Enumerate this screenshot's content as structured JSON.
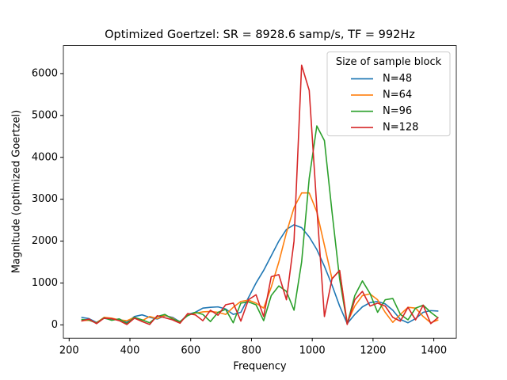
{
  "chart_data": {
    "type": "line",
    "title": "Optimized Goertzel: SR = 8928.6 samp/s, TF = 992Hz",
    "x_label": "Frequency",
    "y_label": "Magnitude (optimized Goertzel)",
    "legend_title": "Size of sample block",
    "legend": "upper right",
    "x": [
      240,
      265,
      290,
      315,
      340,
      365,
      390,
      415,
      440,
      465,
      490,
      515,
      540,
      565,
      590,
      615,
      640,
      665,
      690,
      715,
      740,
      765,
      790,
      815,
      840,
      865,
      890,
      915,
      940,
      965,
      990,
      1015,
      1040,
      1065,
      1090,
      1115,
      1140,
      1165,
      1190,
      1215,
      1240,
      1265,
      1290,
      1315,
      1340,
      1365,
      1390,
      1415
    ],
    "series": [
      {
        "name": "N=48",
        "color": "#1f77b4",
        "values": [
          180,
          150,
          60,
          160,
          120,
          140,
          60,
          200,
          240,
          180,
          140,
          220,
          180,
          70,
          250,
          300,
          400,
          420,
          430,
          380,
          250,
          300,
          650,
          1000,
          1300,
          1650,
          2000,
          2280,
          2390,
          2320,
          2100,
          1800,
          1400,
          950,
          450,
          30,
          250,
          430,
          530,
          560,
          500,
          350,
          130,
          50,
          150,
          300,
          340,
          330
        ]
      },
      {
        "name": "N=64",
        "color": "#ff7f0e",
        "values": [
          100,
          110,
          50,
          180,
          160,
          120,
          100,
          180,
          100,
          200,
          150,
          230,
          160,
          60,
          230,
          280,
          310,
          320,
          300,
          250,
          420,
          560,
          590,
          520,
          400,
          900,
          1500,
          2200,
          2800,
          3150,
          3150,
          2700,
          1900,
          1100,
          1300,
          50,
          450,
          700,
          740,
          600,
          300,
          60,
          250,
          420,
          400,
          200,
          50,
          120
        ]
      },
      {
        "name": "N=96",
        "color": "#2ca02c",
        "values": [
          130,
          120,
          40,
          170,
          110,
          140,
          30,
          180,
          120,
          50,
          200,
          250,
          140,
          80,
          220,
          300,
          250,
          80,
          300,
          370,
          50,
          520,
          550,
          480,
          100,
          700,
          930,
          800,
          350,
          1500,
          3500,
          4750,
          4400,
          2700,
          1100,
          20,
          700,
          1050,
          750,
          300,
          600,
          630,
          250,
          120,
          400,
          470,
          300,
          160
        ]
      },
      {
        "name": "N=128",
        "color": "#d62728",
        "values": [
          90,
          140,
          30,
          160,
          150,
          100,
          10,
          160,
          80,
          10,
          220,
          170,
          120,
          40,
          270,
          240,
          100,
          350,
          230,
          480,
          520,
          90,
          600,
          720,
          200,
          1150,
          1200,
          600,
          2000,
          6200,
          5600,
          2800,
          200,
          1100,
          1300,
          10,
          600,
          800,
          450,
          520,
          450,
          180,
          90,
          420,
          120,
          470,
          30,
          180
        ]
      }
    ],
    "xlim": [
      181,
      1474
    ],
    "ylim": [
      -318,
      6668
    ],
    "xticks": [
      200,
      400,
      600,
      800,
      1000,
      1200,
      1400
    ],
    "yticks": [
      0,
      1000,
      2000,
      3000,
      4000,
      5000,
      6000
    ]
  }
}
